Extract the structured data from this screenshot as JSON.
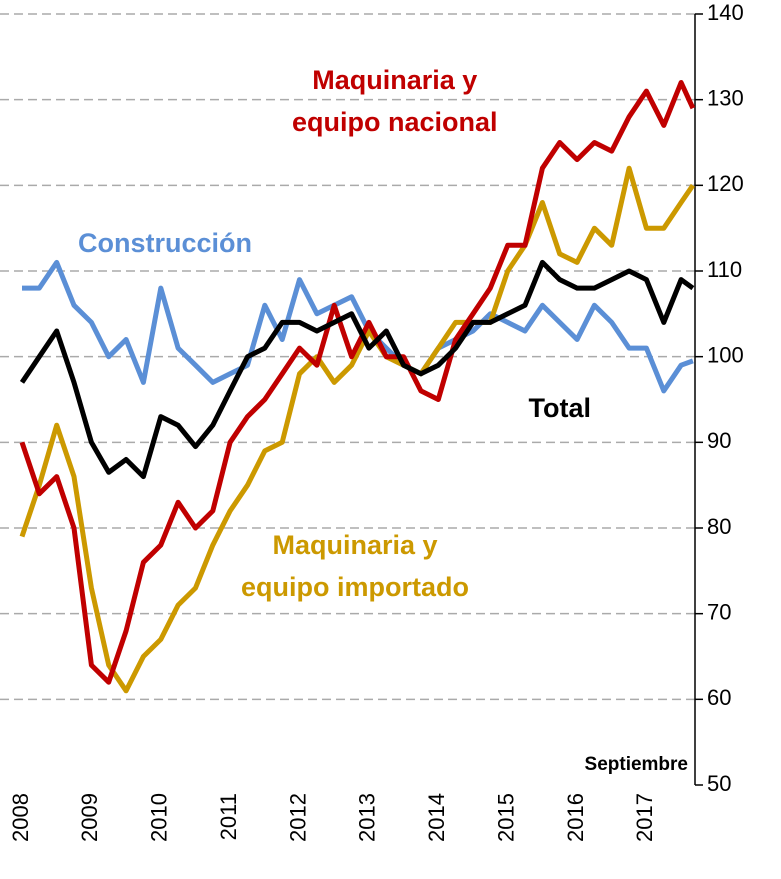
{
  "chart_data": {
    "type": "line",
    "note": "Septiembre",
    "x": [
      2008,
      2008.25,
      2008.5,
      2008.75,
      2009,
      2009.25,
      2009.5,
      2009.75,
      2010,
      2010.25,
      2010.5,
      2010.75,
      2011,
      2011.25,
      2011.5,
      2011.75,
      2012,
      2012.25,
      2012.5,
      2012.75,
      2013,
      2013.25,
      2013.5,
      2013.75,
      2014,
      2014.25,
      2014.5,
      2014.75,
      2015,
      2015.25,
      2015.5,
      2015.75,
      2016,
      2016.25,
      2016.5,
      2016.75,
      2017,
      2017.25,
      2017.5,
      2017.67
    ],
    "series": [
      {
        "name": "Construcción",
        "color": "#5b8fd6",
        "values": [
          108,
          108,
          111,
          106,
          104,
          100,
          102,
          97,
          108,
          101,
          99,
          97,
          98,
          99,
          106,
          102,
          109,
          105,
          106,
          107,
          103,
          101,
          99,
          98,
          101,
          102,
          103,
          105,
          104,
          103,
          106,
          104,
          102,
          106,
          104,
          101,
          101,
          96,
          99,
          99.5
        ]
      },
      {
        "name": "Maquinaria y\nequipo importado",
        "color": "#cc9900",
        "values": [
          79,
          85,
          92,
          86,
          73,
          64,
          61,
          65,
          67,
          71,
          73,
          78,
          82,
          85,
          89,
          90,
          98,
          100,
          97,
          99,
          103,
          100,
          99,
          98,
          101,
          104,
          104,
          104,
          110,
          113,
          118,
          112,
          111,
          115,
          113,
          122,
          115,
          115,
          118,
          120
        ]
      },
      {
        "name": "Maquinaria y\nequipo nacional",
        "color": "#c00000",
        "values": [
          90,
          84,
          86,
          80,
          64,
          62,
          68,
          76,
          78,
          83,
          80,
          82,
          90,
          93,
          95,
          98,
          101,
          99,
          106,
          100,
          104,
          100,
          100,
          96,
          95,
          102,
          105,
          108,
          113,
          113,
          122,
          125,
          123,
          125,
          124,
          128,
          131,
          127,
          132,
          129
        ]
      },
      {
        "name": "Total",
        "color": "#000000",
        "values": [
          97,
          100,
          103,
          97,
          90,
          86.5,
          88,
          86,
          93,
          92,
          89.5,
          92,
          96,
          100,
          101,
          104,
          104,
          103,
          104,
          105,
          101,
          103,
          99,
          98,
          99,
          101,
          104,
          104,
          105,
          106,
          111,
          109,
          108,
          108,
          109,
          110,
          109,
          104,
          109,
          108
        ]
      }
    ],
    "xlim": [
      2008,
      2017.7
    ],
    "xticks": [
      2008,
      2009,
      2010,
      2011,
      2012,
      2013,
      2014,
      2015,
      2016,
      2017
    ],
    "ylim": [
      50,
      140
    ],
    "yticks": [
      50,
      60,
      70,
      80,
      90,
      100,
      110,
      120,
      130,
      140
    ],
    "grid": true
  }
}
